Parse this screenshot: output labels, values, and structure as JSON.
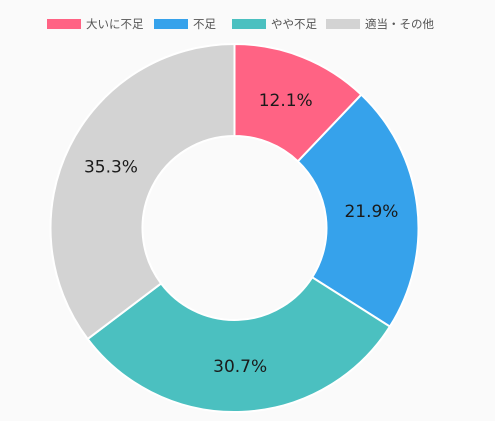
{
  "chart_data": {
    "type": "pie",
    "variant": "doughnut",
    "title": "",
    "legend_position": "top",
    "categories": [
      "大いに不足",
      "不足",
      "やや不足",
      "適当・その他"
    ],
    "values": [
      12.1,
      21.9,
      30.7,
      35.3
    ],
    "value_labels": [
      "12.1%",
      "21.9%",
      "30.7%",
      "35.3%"
    ],
    "colors": [
      "#ff6384",
      "#36a2eb",
      "#4bc0c0",
      "#d3d3d3"
    ]
  }
}
